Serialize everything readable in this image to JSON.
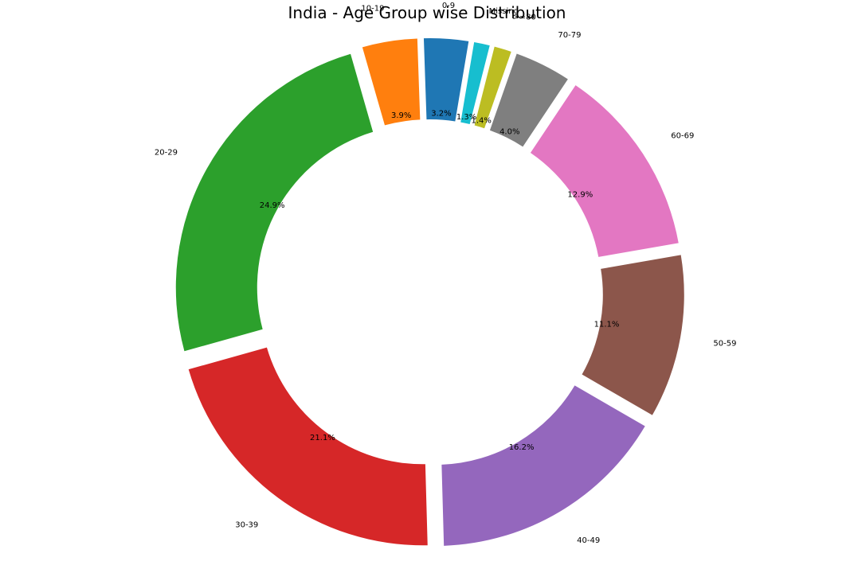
{
  "chart_data": {
    "type": "pie",
    "style": "donut",
    "title": "India - Age Group wise Distribution",
    "slices": [
      {
        "label": "20-29",
        "value": 24.9,
        "pct_label": "24.9%",
        "color": "#2ca02c"
      },
      {
        "label": "30-39",
        "value": 21.1,
        "pct_label": "21.1%",
        "color": "#d62728"
      },
      {
        "label": "40-49",
        "value": 16.2,
        "pct_label": "16.2%",
        "color": "#9467bd"
      },
      {
        "label": "50-59",
        "value": 11.1,
        "pct_label": "11.1%",
        "color": "#8c564b"
      },
      {
        "label": "60-69",
        "value": 12.9,
        "pct_label": "12.9%",
        "color": "#e377c2"
      },
      {
        "label": "70-79",
        "value": 4.0,
        "pct_label": "4.0%",
        "color": "#7f7f7f"
      },
      {
        "label": ">=80",
        "value": 1.4,
        "pct_label": "1.4%",
        "color": "#bcbd22"
      },
      {
        "label": "Missing",
        "value": 1.3,
        "pct_label": "1.3%",
        "color": "#17becf"
      },
      {
        "label": "0-9",
        "value": 3.2,
        "pct_label": "3.2%",
        "color": "#1f77b4"
      },
      {
        "label": "10-19",
        "value": 3.9,
        "pct_label": "3.9%",
        "color": "#ff7f0e"
      }
    ]
  }
}
